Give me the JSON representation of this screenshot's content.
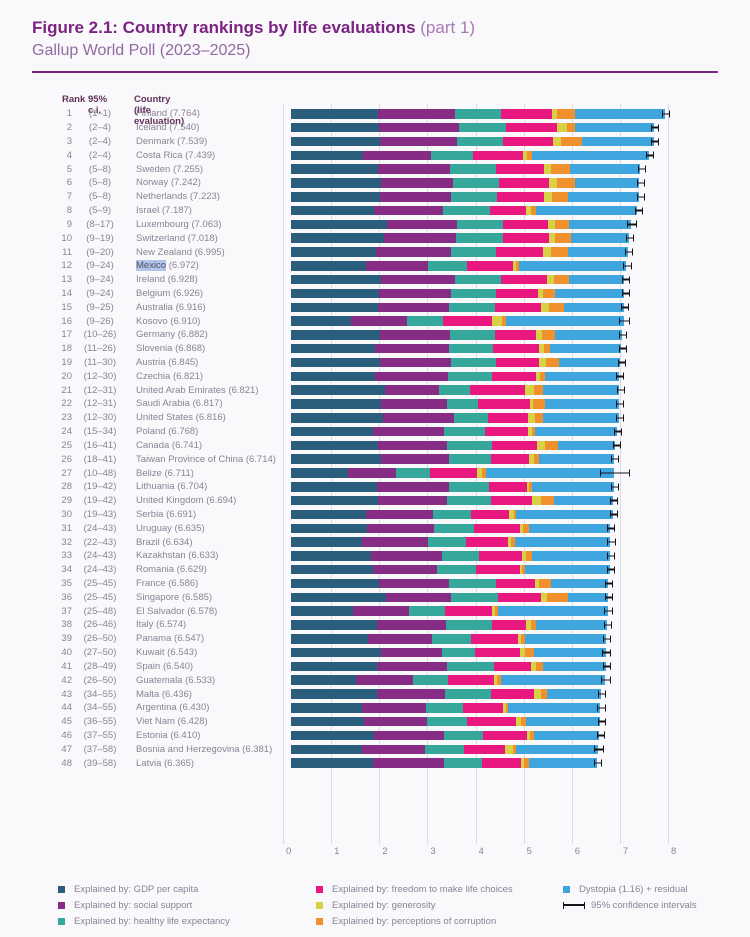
{
  "header": {
    "figure_label": "Figure 2.1: Country rankings by life evaluations",
    "figure_part": " (part 1)",
    "subtitle": "Gallup World Poll (2023–2025)"
  },
  "table_header": {
    "rank": "Rank",
    "ci": "95% c.i.",
    "country": "Country (life evaluation)"
  },
  "colors": {
    "title": "#7b2383",
    "background": "#f9f8fb",
    "gridline": "#dcd9e1",
    "row_text": "#8c8396",
    "error_bar": "#15151c",
    "highlight_background": "#b0c5e8",
    "segments": {
      "gdp": "#2b5e7d",
      "social": "#862c84",
      "health": "#35a79b",
      "freedom": "#e81880",
      "generosity": "#d6d244",
      "corruption": "#f0912d",
      "dystopia": "#3fa5df"
    }
  },
  "highlight": {
    "country": "Mexico"
  },
  "legend": {
    "columns": [
      [
        {
          "label": "Explained by: GDP per capita",
          "swatch": "gdp"
        },
        {
          "label": "Explained by: social support",
          "swatch": "social"
        },
        {
          "label": "Explained by: healthy life expectancy",
          "swatch": "health"
        }
      ],
      [
        {
          "label": "Explained by: freedom to make life choices",
          "swatch": "freedom"
        },
        {
          "label": "Explained by: generosity",
          "swatch": "generosity"
        },
        {
          "label": "Explained by: perceptions of corruption",
          "swatch": "corruption"
        }
      ],
      [
        {
          "label": "Dystopia (1.16) + residual",
          "swatch": "dystopia"
        },
        {
          "label": "95% confidence intervals",
          "swatch": "ci-icon"
        }
      ]
    ]
  },
  "chart_data": {
    "type": "bar",
    "orientation": "horizontal",
    "stacked": true,
    "title": "Country rankings by life evaluations (part 1), Gallup World Poll (2023-2025)",
    "xlabel": "Life evaluation score",
    "xlim": [
      0,
      8
    ],
    "x_ticks": [
      0,
      1,
      2,
      3,
      4,
      5,
      6,
      7,
      8
    ],
    "grid": true,
    "legend_position": "bottom",
    "series_names": [
      "Explained by: GDP per capita",
      "Explained by: social support",
      "Explained by: healthy life expectancy",
      "Explained by: freedom to make life choices",
      "Explained by: generosity",
      "Explained by: perceptions of corruption",
      "Dystopia (1.16) + residual"
    ],
    "component_values_estimated_from_pixels": true,
    "countries_columns": [
      "rank",
      "ci_range",
      "name",
      "score",
      "ci95_half_width",
      "gdp",
      "social",
      "health",
      "freedom",
      "generosity",
      "corruption",
      "dystopia"
    ],
    "countries": [
      [
        1,
        "(1–1)",
        "Finland",
        7.764,
        0.055,
        1.8,
        1.6,
        0.96,
        1.06,
        0.11,
        0.38,
        1.854
      ],
      [
        2,
        "(2–4)",
        "Iceland",
        7.54,
        0.05,
        1.82,
        1.68,
        0.96,
        1.06,
        0.22,
        0.17,
        1.63
      ],
      [
        3,
        "(2–4)",
        "Denmark",
        7.539,
        0.055,
        1.85,
        1.6,
        0.95,
        1.04,
        0.17,
        0.43,
        1.499
      ],
      [
        4,
        "(2–4)",
        "Costa Rica",
        7.439,
        0.065,
        1.5,
        1.4,
        0.88,
        1.05,
        0.08,
        0.1,
        2.429
      ],
      [
        5,
        "(5–8)",
        "Sweden",
        7.255,
        0.055,
        1.8,
        1.5,
        0.95,
        1.0,
        0.15,
        0.4,
        1.455
      ],
      [
        6,
        "(5–8)",
        "Norway",
        7.242,
        0.045,
        1.87,
        1.5,
        0.95,
        1.05,
        0.16,
        0.37,
        1.342
      ],
      [
        7,
        "(5–8)",
        "Netherlands",
        7.223,
        0.04,
        1.85,
        1.48,
        0.95,
        0.98,
        0.17,
        0.33,
        1.463
      ],
      [
        8,
        "(5–9)",
        "Israel",
        7.187,
        0.04,
        1.72,
        1.44,
        0.98,
        0.75,
        0.1,
        0.11,
        2.087
      ],
      [
        9,
        "(8–17)",
        "Luxembourg",
        7.063,
        0.085,
        2.0,
        1.45,
        0.95,
        0.95,
        0.13,
        0.3,
        1.283
      ],
      [
        10,
        "(9–19)",
        "Switzerland",
        7.018,
        0.06,
        1.94,
        1.48,
        0.99,
        0.95,
        0.12,
        0.33,
        1.208
      ],
      [
        11,
        "(9–20)",
        "New Zealand",
        6.995,
        0.055,
        1.76,
        1.56,
        0.94,
        0.97,
        0.17,
        0.36,
        1.235
      ],
      [
        12,
        "(9–24)",
        "Mexico",
        6.972,
        0.075,
        1.55,
        1.3,
        0.8,
        0.96,
        0.06,
        0.07,
        2.232
      ],
      [
        13,
        "(9–24)",
        "Ireland",
        6.928,
        0.06,
        1.88,
        1.53,
        0.95,
        0.95,
        0.15,
        0.31,
        1.158
      ],
      [
        14,
        "(9–24)",
        "Belgium",
        6.926,
        0.055,
        1.82,
        1.5,
        0.93,
        0.88,
        0.1,
        0.26,
        1.436
      ],
      [
        15,
        "(9–25)",
        "Australia",
        6.916,
        0.06,
        1.8,
        1.48,
        0.95,
        0.97,
        0.17,
        0.3,
        1.246
      ],
      [
        16,
        "(9–26)",
        "Kosovo",
        6.91,
        0.085,
        1.25,
        1.16,
        0.75,
        1.02,
        0.21,
        0.08,
        2.44
      ],
      [
        17,
        "(10–26)",
        "Germany",
        6.882,
        0.065,
        1.84,
        1.47,
        0.93,
        0.85,
        0.12,
        0.28,
        1.392
      ],
      [
        18,
        "(11–26)",
        "Slovenia",
        6.868,
        0.055,
        1.75,
        1.53,
        0.92,
        0.95,
        0.11,
        0.12,
        1.488
      ],
      [
        19,
        "(11–30)",
        "Austria",
        6.845,
        0.06,
        1.84,
        1.48,
        0.94,
        0.9,
        0.14,
        0.26,
        1.285
      ],
      [
        20,
        "(12–30)",
        "Czechia",
        6.821,
        0.065,
        1.75,
        1.52,
        0.9,
        0.92,
        0.09,
        0.1,
        1.541
      ],
      [
        21,
        "(12–31)",
        "United Arab Emirates",
        6.821,
        0.055,
        1.95,
        1.12,
        0.66,
        1.13,
        0.19,
        0.18,
        1.591
      ],
      [
        22,
        "(12–31)",
        "Saudi Arabia",
        6.817,
        0.065,
        1.86,
        1.38,
        0.64,
        1.08,
        0.07,
        0.24,
        1.547
      ],
      [
        23,
        "(12–30)",
        "United States",
        6.816,
        0.055,
        1.91,
        1.47,
        0.71,
        0.83,
        0.16,
        0.15,
        1.586
      ],
      [
        24,
        "(15–34)",
        "Poland",
        6.768,
        0.06,
        1.71,
        1.47,
        0.85,
        0.89,
        0.08,
        0.08,
        1.688
      ],
      [
        25,
        "(16–41)",
        "Canada",
        6.741,
        0.06,
        1.81,
        1.44,
        0.93,
        0.94,
        0.15,
        0.28,
        1.191
      ],
      [
        26,
        "(18–41)",
        "Taiwan Province of China",
        6.714,
        0.055,
        1.87,
        1.42,
        0.87,
        0.78,
        0.11,
        0.1,
        1.564
      ],
      [
        27,
        "(10–48)",
        "Belize",
        6.711,
        0.29,
        1.18,
        1.0,
        0.7,
        0.99,
        0.1,
        0.09,
        2.651
      ],
      [
        28,
        "(19–42)",
        "Lithuania",
        6.704,
        0.055,
        1.78,
        1.51,
        0.83,
        0.79,
        0.04,
        0.06,
        1.694
      ],
      [
        29,
        "(19–42)",
        "United Kingdom",
        6.694,
        0.065,
        1.8,
        1.45,
        0.91,
        0.85,
        0.18,
        0.28,
        1.224
      ],
      [
        30,
        "(19–43)",
        "Serbia",
        6.691,
        0.065,
        1.56,
        1.39,
        0.79,
        0.79,
        0.1,
        0.05,
        2.011
      ],
      [
        31,
        "(24–43)",
        "Uruguay",
        6.635,
        0.065,
        1.58,
        1.4,
        0.83,
        0.94,
        0.07,
        0.12,
        1.695
      ],
      [
        32,
        "(22–43)",
        "Brazil",
        6.634,
        0.075,
        1.47,
        1.37,
        0.79,
        0.87,
        0.08,
        0.08,
        1.974
      ],
      [
        33,
        "(24–43)",
        "Kazakhstan",
        6.633,
        0.06,
        1.67,
        1.47,
        0.76,
        0.9,
        0.09,
        0.11,
        1.633
      ],
      [
        34,
        "(24–43)",
        "Romania",
        6.629,
        0.07,
        1.7,
        1.34,
        0.81,
        0.9,
        0.06,
        0.05,
        1.769
      ],
      [
        35,
        "(25–45)",
        "France",
        6.586,
        0.055,
        1.82,
        1.47,
        0.97,
        0.82,
        0.08,
        0.25,
        1.176
      ],
      [
        36,
        "(25–45)",
        "Singapore",
        6.585,
        0.06,
        1.98,
        1.35,
        0.98,
        0.88,
        0.12,
        0.45,
        0.825
      ],
      [
        37,
        "(25–48)",
        "El Salvador",
        6.578,
        0.075,
        1.28,
        1.18,
        0.75,
        0.96,
        0.06,
        0.08,
        2.268
      ],
      [
        38,
        "(26–46)",
        "Italy",
        6.574,
        0.06,
        1.78,
        1.44,
        0.95,
        0.72,
        0.1,
        0.1,
        1.484
      ],
      [
        39,
        "(26–50)",
        "Panama",
        6.547,
        0.07,
        1.61,
        1.32,
        0.82,
        0.97,
        0.07,
        0.07,
        1.687
      ],
      [
        40,
        "(27–50)",
        "Kuwait",
        6.543,
        0.075,
        1.86,
        1.28,
        0.68,
        0.93,
        0.12,
        0.18,
        1.493
      ],
      [
        41,
        "(28–49)",
        "Spain",
        6.54,
        0.055,
        1.78,
        1.46,
        0.97,
        0.78,
        0.1,
        0.14,
        1.31
      ],
      [
        42,
        "(26–50)",
        "Guatemala",
        6.533,
        0.085,
        1.35,
        1.19,
        0.73,
        0.95,
        0.07,
        0.07,
        2.173
      ],
      [
        43,
        "(34–55)",
        "Malta",
        6.436,
        0.06,
        1.79,
        1.42,
        0.95,
        0.89,
        0.14,
        0.12,
        1.126
      ],
      [
        44,
        "(34–55)",
        "Argentina",
        6.43,
        0.065,
        1.47,
        1.33,
        0.78,
        0.82,
        0.06,
        0.06,
        1.91
      ],
      [
        45,
        "(36–55)",
        "Viet Nam",
        6.428,
        0.055,
        1.52,
        1.3,
        0.83,
        1.03,
        0.09,
        0.12,
        1.538
      ],
      [
        46,
        "(37–55)",
        "Estonia",
        6.41,
        0.055,
        1.72,
        1.45,
        0.82,
        0.92,
        0.05,
        0.08,
        1.37
      ],
      [
        47,
        "(37–58)",
        "Bosnia and Herzegovina",
        6.381,
        0.075,
        1.48,
        1.31,
        0.8,
        0.86,
        0.17,
        0.06,
        1.701
      ],
      [
        48,
        "(39–58)",
        "Latvia",
        6.365,
        0.06,
        1.7,
        1.48,
        0.79,
        0.81,
        0.07,
        0.09,
        1.425
      ]
    ]
  }
}
